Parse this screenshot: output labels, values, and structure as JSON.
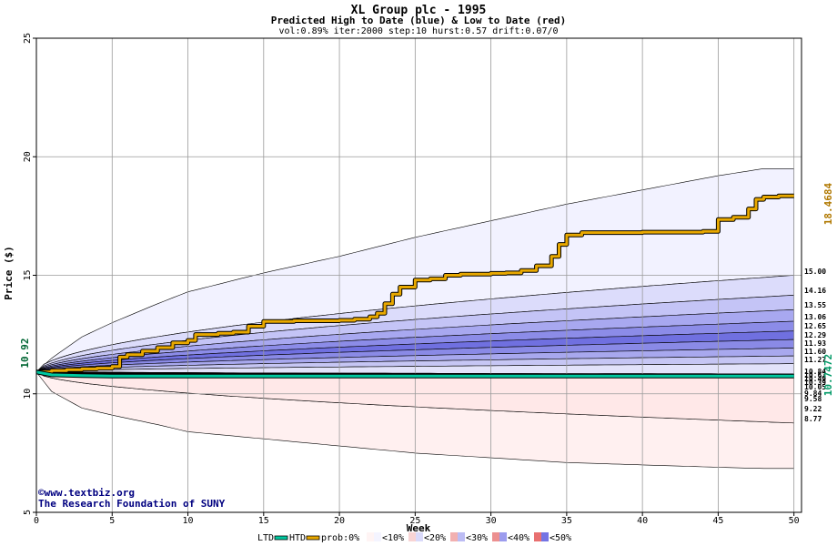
{
  "chart_data": {
    "type": "area",
    "title": "XL Group plc - 1995",
    "subtitle": "Predicted High to Date (blue) &  Low to Date (red)",
    "params": "vol:0.89% iter:2000 step:10 hurst:0.57 drift:0.07/0",
    "xlabel": "Week",
    "ylabel": "Price ($)",
    "xlim": [
      0,
      50.5
    ],
    "ylim": [
      5,
      25
    ],
    "x_ticks": [
      0,
      5,
      10,
      15,
      20,
      25,
      30,
      35,
      40,
      45,
      50
    ],
    "y_ticks": [
      5,
      10,
      15,
      20,
      25
    ],
    "grid": true,
    "start_value": "10.92",
    "end_high_value": "18.4684",
    "end_low_value": "10.7472",
    "right_labels": [
      "15.00",
      "14.16",
      "13.55",
      "13.06",
      "12.65",
      "12.29",
      "11.93",
      "11.60",
      "11.27",
      "10.84",
      "10.63",
      "10.49",
      "10.39",
      "10.05",
      "9.84",
      "9.58",
      "9.22",
      "8.77"
    ],
    "envelope_upper": [
      [
        0,
        10.92
      ],
      [
        1,
        11.5
      ],
      [
        3,
        12.4
      ],
      [
        5,
        13.0
      ],
      [
        8,
        13.8
      ],
      [
        10,
        14.3
      ],
      [
        15,
        15.1
      ],
      [
        20,
        15.8
      ],
      [
        25,
        16.6
      ],
      [
        30,
        17.3
      ],
      [
        35,
        18.0
      ],
      [
        40,
        18.6
      ],
      [
        45,
        19.2
      ],
      [
        48,
        19.5
      ],
      [
        50,
        19.5
      ]
    ],
    "envelope_lower": [
      [
        0,
        10.92
      ],
      [
        1,
        10.1
      ],
      [
        3,
        9.4
      ],
      [
        5,
        9.1
      ],
      [
        8,
        8.7
      ],
      [
        10,
        8.4
      ],
      [
        15,
        8.1
      ],
      [
        20,
        7.8
      ],
      [
        25,
        7.5
      ],
      [
        30,
        7.3
      ],
      [
        35,
        7.1
      ],
      [
        40,
        7.0
      ],
      [
        45,
        6.9
      ],
      [
        48,
        6.85
      ],
      [
        50,
        6.85
      ]
    ],
    "upper_quantiles": [
      15.0,
      14.16,
      13.55,
      13.06,
      12.65,
      12.29,
      11.93,
      11.6,
      11.27,
      10.84
    ],
    "lower_quantiles": [
      10.63,
      10.49,
      10.39,
      10.05,
      9.84,
      9.58,
      9.22,
      8.77
    ],
    "series": [
      {
        "name": "HTD",
        "color": "#e8a800",
        "points": [
          [
            0,
            10.92
          ],
          [
            1,
            10.98
          ],
          [
            2,
            11.02
          ],
          [
            3,
            11.05
          ],
          [
            4,
            11.08
          ],
          [
            5,
            11.15
          ],
          [
            5.5,
            11.55
          ],
          [
            6,
            11.65
          ],
          [
            7,
            11.8
          ],
          [
            8,
            11.95
          ],
          [
            9,
            12.15
          ],
          [
            10,
            12.25
          ],
          [
            10.5,
            12.5
          ],
          [
            12,
            12.55
          ],
          [
            13,
            12.6
          ],
          [
            14,
            12.85
          ],
          [
            15,
            13.05
          ],
          [
            17,
            13.08
          ],
          [
            20,
            13.1
          ],
          [
            21,
            13.15
          ],
          [
            22,
            13.25
          ],
          [
            22.5,
            13.4
          ],
          [
            23,
            13.8
          ],
          [
            23.5,
            14.2
          ],
          [
            24,
            14.5
          ],
          [
            25,
            14.8
          ],
          [
            26,
            14.85
          ],
          [
            27,
            15.0
          ],
          [
            28,
            15.05
          ],
          [
            30,
            15.08
          ],
          [
            31,
            15.1
          ],
          [
            32,
            15.2
          ],
          [
            33,
            15.4
          ],
          [
            34,
            15.8
          ],
          [
            34.5,
            16.3
          ],
          [
            35,
            16.7
          ],
          [
            36,
            16.8
          ],
          [
            40,
            16.82
          ],
          [
            44,
            16.85
          ],
          [
            45,
            17.35
          ],
          [
            46,
            17.45
          ],
          [
            47,
            17.8
          ],
          [
            47.5,
            18.2
          ],
          [
            48,
            18.3
          ],
          [
            49,
            18.35
          ],
          [
            50,
            18.35
          ]
        ]
      },
      {
        "name": "LTD",
        "color": "#00c8a0",
        "points": [
          [
            0,
            10.92
          ],
          [
            1,
            10.8
          ],
          [
            3,
            10.77
          ],
          [
            5,
            10.75
          ],
          [
            10,
            10.75
          ],
          [
            20,
            10.75
          ],
          [
            30,
            10.75
          ],
          [
            40,
            10.75
          ],
          [
            50,
            10.75
          ]
        ]
      }
    ],
    "legend": {
      "placement": "bottom",
      "items": [
        "LTD",
        "HTD",
        "prob:0%",
        "<10%",
        "<20%",
        "<30%",
        "<40%",
        "<50%"
      ]
    },
    "band_colors": {
      "blue": [
        "#f2f2ff",
        "#dcdcfb",
        "#c4c4f6",
        "#a8a8f0",
        "#8c8ce8",
        "#7070e0",
        "#8a8ae6",
        "#a8a8ee",
        "#c6c6f4",
        "#e2e2fa"
      ],
      "red": [
        "#fff0f0",
        "#fcd8d8",
        "#f8c0c0",
        "#f3a4a4",
        "#ee8888",
        "#ec7878",
        "#f29c9c",
        "#f7c4c4"
      ]
    },
    "credits": [
      "©www.textbiz.org",
      "The Research Foundation of SUNY"
    ]
  }
}
